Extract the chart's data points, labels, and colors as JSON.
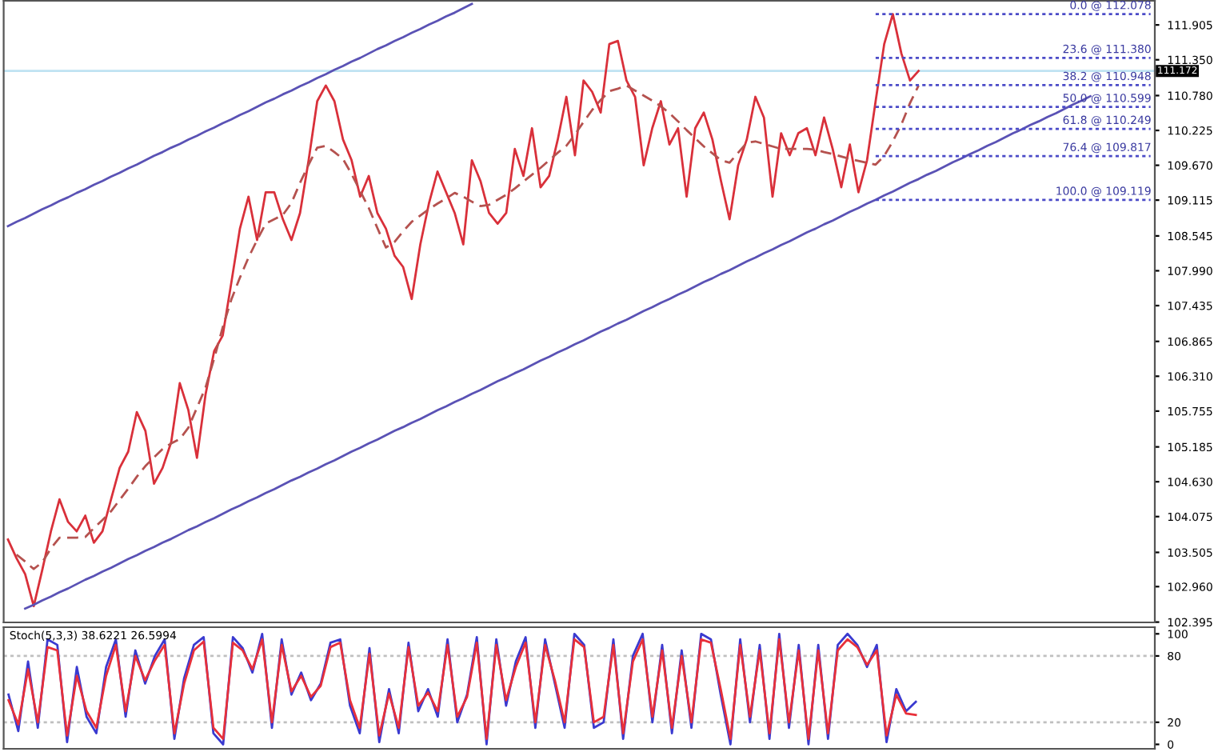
{
  "chart_data": [
    {
      "type": "line",
      "tick_labels": "y",
      "ylim": [
        102.39,
        112.29
      ],
      "categories": [
        null,
        null,
        null,
        null,
        null,
        null,
        null,
        null,
        null,
        null,
        null,
        null,
        null,
        null,
        null,
        null,
        null,
        null,
        null,
        null,
        null,
        null,
        null,
        null,
        null,
        null,
        null,
        null,
        null,
        null,
        null,
        null,
        null,
        null,
        null,
        null,
        null,
        null,
        null,
        null,
        null,
        null,
        null,
        null,
        null,
        null,
        null,
        null,
        null,
        null,
        null,
        null,
        null,
        null,
        null,
        null,
        null,
        null,
        null,
        null,
        null,
        null,
        null,
        null,
        null,
        null,
        null,
        null,
        null,
        null,
        null,
        null,
        null,
        null,
        null,
        null,
        null,
        null,
        null,
        null,
        null,
        null,
        null,
        null,
        null,
        null,
        null,
        null,
        null,
        null,
        null,
        null,
        null,
        null,
        null,
        null,
        null,
        null,
        null,
        null,
        null,
        null,
        null,
        null,
        null,
        null,
        null,
        null,
        null,
        null,
        null,
        null,
        null,
        null,
        null,
        null,
        null,
        null,
        null,
        null,
        null,
        null,
        null,
        null,
        null,
        null,
        null,
        null,
        null,
        null,
        null,
        null,
        null,
        null
      ],
      "yticks": [
        102.395,
        {
          "value": 102.96,
          "label": "102.960"
        },
        103.505,
        104.075,
        {
          "value": 104.63,
          "label": "104.630"
        },
        105.185,
        105.755,
        {
          "value": 106.31,
          "label": "106.310"
        },
        106.865,
        107.435,
        {
          "value": 107.99,
          "label": "107.990"
        },
        108.545,
        109.115,
        {
          "value": 109.67,
          "label": "109.670"
        },
        110.225,
        {
          "value": 110.78,
          "label": "110.780"
        },
        {
          "value": 111.35,
          "label": "111.350"
        },
        111.905
      ],
      "series": [
        {
          "color": "#d9303a",
          "values": [
            103.71,
            103.41,
            103.16,
            102.65,
            103.23,
            103.84,
            104.35,
            103.99,
            103.84,
            104.09,
            103.66,
            103.84,
            104.35,
            104.85,
            105.11,
            105.74,
            105.44,
            104.6,
            104.85,
            105.26,
            106.2,
            105.77,
            105.01,
            106.02,
            106.71,
            106.96,
            107.8,
            108.66,
            109.17,
            108.48,
            109.24,
            109.24,
            108.81,
            108.48,
            108.91,
            109.75,
            110.69,
            110.94,
            110.69,
            110.08,
            109.75,
            109.17,
            109.5,
            108.91,
            108.66,
            108.23,
            108.05,
            107.54,
            108.41,
            109.06,
            109.57,
            109.24,
            108.91,
            108.41,
            109.75,
            109.42,
            108.91,
            108.74,
            108.91,
            109.93,
            109.5,
            110.26,
            109.32,
            109.5,
            110.08,
            110.76,
            109.83,
            111.02,
            110.84,
            110.51,
            111.6,
            111.65,
            111.02,
            110.76,
            109.67,
            110.26,
            110.69,
            110.0,
            110.26,
            109.17,
            110.26,
            110.51,
            110.08,
            109.42,
            108.81,
            109.67,
            110.08,
            110.76,
            110.43,
            109.17,
            110.18,
            109.83,
            110.18,
            110.26,
            109.83,
            110.43,
            109.93,
            109.32,
            110.0,
            109.24,
            109.75,
            110.69,
            111.6,
            112.078,
            111.45,
            111.02,
            111.172,
            null,
            null,
            null,
            null,
            null,
            null,
            null,
            null,
            null,
            null,
            null,
            null,
            null,
            null,
            null,
            null,
            null,
            null,
            null,
            null,
            null,
            null,
            null,
            null,
            null,
            null,
            null
          ]
        },
        {
          "color": "#b5524f",
          "line_style": "dashed",
          "values": [
            null,
            103.47,
            103.36,
            103.24,
            103.35,
            103.57,
            103.74,
            103.74,
            103.74,
            103.75,
            103.89,
            104.02,
            104.16,
            104.34,
            104.52,
            104.71,
            104.88,
            105.02,
            105.15,
            105.24,
            105.31,
            105.49,
            105.81,
            106.13,
            106.59,
            107.09,
            107.53,
            107.88,
            108.2,
            108.48,
            108.74,
            108.81,
            108.88,
            109.07,
            109.39,
            109.68,
            109.95,
            109.98,
            109.88,
            109.77,
            109.53,
            109.26,
            108.99,
            108.67,
            108.36,
            108.45,
            108.62,
            108.77,
            108.87,
            108.97,
            109.06,
            109.14,
            109.23,
            109.17,
            109.09,
            109.02,
            109.04,
            109.12,
            109.2,
            109.3,
            109.41,
            109.52,
            109.63,
            109.75,
            109.87,
            109.98,
            110.16,
            110.36,
            110.55,
            110.71,
            110.85,
            110.89,
            110.94,
            110.86,
            110.78,
            110.7,
            110.61,
            110.5,
            110.37,
            110.23,
            110.1,
            109.97,
            109.86,
            109.75,
            109.71,
            109.87,
            110.03,
            110.05,
            110.01,
            109.97,
            109.93,
            109.93,
            109.93,
            109.93,
            109.92,
            109.88,
            109.85,
            109.81,
            109.77,
            109.74,
            109.71,
            109.68,
            109.82,
            110.05,
            110.32,
            110.66,
            110.94,
            null,
            null,
            null,
            null,
            null,
            null,
            null,
            null,
            null,
            null,
            null,
            null,
            null,
            null,
            null,
            null,
            null,
            null,
            null,
            null,
            null,
            null,
            null,
            null,
            null,
            null,
            null
          ]
        },
        {
          "color": "#5a52b5",
          "values": [
            108.7,
            108.77,
            108.83,
            108.9,
            108.97,
            109.03,
            109.1,
            109.16,
            109.23,
            109.29,
            109.36,
            109.42,
            109.49,
            109.55,
            109.62,
            109.68,
            109.75,
            109.82,
            109.88,
            109.95,
            110.01,
            110.08,
            110.14,
            110.21,
            110.27,
            110.34,
            110.4,
            110.47,
            110.53,
            110.6,
            110.67,
            110.73,
            110.8,
            110.86,
            110.93,
            110.99,
            111.06,
            111.12,
            111.19,
            111.25,
            111.32,
            111.38,
            111.45,
            111.52,
            111.58,
            111.65,
            111.71,
            111.78,
            111.84,
            111.91,
            111.97,
            112.04,
            112.1,
            112.17,
            112.24,
            null,
            null,
            null,
            null,
            null,
            null,
            null,
            null,
            null,
            null,
            null,
            null,
            null,
            null,
            null,
            null,
            null,
            null,
            null,
            null,
            null,
            null,
            null,
            null,
            null,
            null,
            null,
            null,
            null,
            null,
            null,
            null,
            null,
            null,
            null,
            null,
            null,
            null,
            null,
            null,
            null,
            null,
            null,
            null,
            null,
            null,
            null,
            null,
            null,
            null,
            null,
            null,
            null,
            null,
            null,
            null,
            null,
            null,
            null,
            null,
            null,
            null,
            null,
            null,
            null,
            null,
            null,
            null,
            null,
            null,
            null,
            null,
            null,
            null,
            null,
            null,
            null,
            null,
            null
          ]
        },
        {
          "color": "#5a52b5",
          "values": [
            null,
            null,
            102.61,
            102.67,
            102.74,
            102.8,
            102.87,
            102.93,
            103.0,
            103.07,
            103.13,
            103.2,
            103.26,
            103.33,
            103.4,
            103.46,
            103.53,
            103.59,
            103.66,
            103.72,
            103.79,
            103.86,
            103.92,
            103.99,
            104.05,
            104.12,
            104.19,
            104.25,
            104.32,
            104.38,
            104.45,
            104.51,
            104.58,
            104.65,
            104.71,
            104.78,
            104.84,
            104.91,
            104.97,
            105.04,
            105.11,
            105.17,
            105.24,
            105.3,
            105.37,
            105.44,
            105.5,
            105.57,
            105.63,
            105.7,
            105.77,
            105.83,
            105.9,
            105.96,
            106.03,
            106.09,
            106.16,
            106.23,
            106.29,
            106.36,
            106.42,
            106.49,
            106.56,
            106.62,
            106.69,
            106.75,
            106.82,
            106.88,
            106.95,
            107.02,
            107.08,
            107.15,
            107.21,
            107.28,
            107.35,
            107.41,
            107.48,
            107.54,
            107.61,
            107.67,
            107.74,
            107.81,
            107.87,
            107.94,
            108.0,
            108.07,
            108.14,
            108.2,
            108.27,
            108.33,
            108.4,
            108.46,
            108.53,
            108.6,
            108.66,
            108.73,
            108.79,
            108.86,
            108.93,
            108.99,
            109.06,
            109.12,
            109.19,
            109.25,
            109.32,
            109.39,
            109.45,
            109.52,
            109.58,
            109.65,
            109.72,
            109.78,
            109.85,
            109.91,
            109.98,
            110.04,
            110.11,
            110.18,
            110.24,
            110.31,
            110.37,
            110.44,
            110.5,
            110.57,
            110.64,
            110.7,
            110.77,
            null,
            null,
            null,
            null,
            null,
            null,
            null
          ]
        },
        {
          "color": "#4b4bc8",
          "line_style": "dotted",
          "values": [
            null,
            null,
            null,
            null,
            null,
            null,
            null,
            null,
            null,
            null,
            null,
            null,
            null,
            null,
            null,
            null,
            null,
            null,
            null,
            null,
            null,
            null,
            null,
            null,
            null,
            null,
            null,
            null,
            null,
            null,
            null,
            null,
            null,
            null,
            null,
            null,
            null,
            null,
            null,
            null,
            null,
            null,
            null,
            null,
            null,
            null,
            null,
            null,
            null,
            null,
            null,
            null,
            null,
            null,
            null,
            null,
            null,
            null,
            null,
            null,
            null,
            null,
            null,
            null,
            null,
            null,
            null,
            null,
            null,
            null,
            null,
            null,
            null,
            null,
            null,
            null,
            null,
            null,
            null,
            null,
            null,
            null,
            null,
            null,
            null,
            null,
            null,
            null,
            null,
            null,
            null,
            null,
            null,
            null,
            null,
            null,
            null,
            null,
            null,
            null,
            null,
            112.078,
            112.078,
            112.078,
            112.078,
            112.078,
            112.078,
            112.078,
            112.078,
            112.078,
            112.078,
            112.078,
            112.078,
            112.078,
            112.078,
            112.078,
            112.078,
            112.078,
            112.078,
            112.078,
            112.078,
            112.078,
            112.078,
            112.078,
            112.078,
            112.078,
            112.078,
            112.078,
            112.078,
            112.078,
            112.078,
            112.078,
            112.078,
            112.078
          ]
        },
        {
          "color": "#4b4bc8",
          "line_style": "dotted",
          "values": [
            null,
            null,
            null,
            null,
            null,
            null,
            null,
            null,
            null,
            null,
            null,
            null,
            null,
            null,
            null,
            null,
            null,
            null,
            null,
            null,
            null,
            null,
            null,
            null,
            null,
            null,
            null,
            null,
            null,
            null,
            null,
            null,
            null,
            null,
            null,
            null,
            null,
            null,
            null,
            null,
            null,
            null,
            null,
            null,
            null,
            null,
            null,
            null,
            null,
            null,
            null,
            null,
            null,
            null,
            null,
            null,
            null,
            null,
            null,
            null,
            null,
            null,
            null,
            null,
            null,
            null,
            null,
            null,
            null,
            null,
            null,
            null,
            null,
            null,
            null,
            null,
            null,
            null,
            null,
            null,
            null,
            null,
            null,
            null,
            null,
            null,
            null,
            null,
            null,
            null,
            null,
            null,
            null,
            null,
            null,
            null,
            null,
            null,
            null,
            null,
            null,
            111.38,
            111.38,
            111.38,
            111.38,
            111.38,
            111.38,
            111.38,
            111.38,
            111.38,
            111.38,
            111.38,
            111.38,
            111.38,
            111.38,
            111.38,
            111.38,
            111.38,
            111.38,
            111.38,
            111.38,
            111.38,
            111.38,
            111.38,
            111.38,
            111.38,
            111.38,
            111.38,
            111.38,
            111.38,
            111.38,
            111.38,
            111.38,
            111.38
          ]
        },
        {
          "color": "#4b4bc8",
          "line_style": "dotted",
          "values": [
            null,
            null,
            null,
            null,
            null,
            null,
            null,
            null,
            null,
            null,
            null,
            null,
            null,
            null,
            null,
            null,
            null,
            null,
            null,
            null,
            null,
            null,
            null,
            null,
            null,
            null,
            null,
            null,
            null,
            null,
            null,
            null,
            null,
            null,
            null,
            null,
            null,
            null,
            null,
            null,
            null,
            null,
            null,
            null,
            null,
            null,
            null,
            null,
            null,
            null,
            null,
            null,
            null,
            null,
            null,
            null,
            null,
            null,
            null,
            null,
            null,
            null,
            null,
            null,
            null,
            null,
            null,
            null,
            null,
            null,
            null,
            null,
            null,
            null,
            null,
            null,
            null,
            null,
            null,
            null,
            null,
            null,
            null,
            null,
            null,
            null,
            null,
            null,
            null,
            null,
            null,
            null,
            null,
            null,
            null,
            null,
            null,
            null,
            null,
            null,
            null,
            110.948,
            110.948,
            110.948,
            110.948,
            110.948,
            110.948,
            110.948,
            110.948,
            110.948,
            110.948,
            110.948,
            110.948,
            110.948,
            110.948,
            110.948,
            110.948,
            110.948,
            110.948,
            110.948,
            110.948,
            110.948,
            110.948,
            110.948,
            110.948,
            110.948,
            110.948,
            110.948,
            110.948,
            110.948,
            110.948,
            110.948,
            110.948,
            110.948
          ]
        },
        {
          "color": "#4b4bc8",
          "line_style": "dotted",
          "values": [
            null,
            null,
            null,
            null,
            null,
            null,
            null,
            null,
            null,
            null,
            null,
            null,
            null,
            null,
            null,
            null,
            null,
            null,
            null,
            null,
            null,
            null,
            null,
            null,
            null,
            null,
            null,
            null,
            null,
            null,
            null,
            null,
            null,
            null,
            null,
            null,
            null,
            null,
            null,
            null,
            null,
            null,
            null,
            null,
            null,
            null,
            null,
            null,
            null,
            null,
            null,
            null,
            null,
            null,
            null,
            null,
            null,
            null,
            null,
            null,
            null,
            null,
            null,
            null,
            null,
            null,
            null,
            null,
            null,
            null,
            null,
            null,
            null,
            null,
            null,
            null,
            null,
            null,
            null,
            null,
            null,
            null,
            null,
            null,
            null,
            null,
            null,
            null,
            null,
            null,
            null,
            null,
            null,
            null,
            null,
            null,
            null,
            null,
            null,
            null,
            null,
            110.599,
            110.599,
            110.599,
            110.599,
            110.599,
            110.599,
            110.599,
            110.599,
            110.599,
            110.599,
            110.599,
            110.599,
            110.599,
            110.599,
            110.599,
            110.599,
            110.599,
            110.599,
            110.599,
            110.599,
            110.599,
            110.599,
            110.599,
            110.599,
            110.599,
            110.599,
            110.599,
            110.599,
            110.599,
            110.599,
            110.599,
            110.599,
            110.599
          ]
        },
        {
          "color": "#4b4bc8",
          "line_style": "dotted",
          "values": [
            null,
            null,
            null,
            null,
            null,
            null,
            null,
            null,
            null,
            null,
            null,
            null,
            null,
            null,
            null,
            null,
            null,
            null,
            null,
            null,
            null,
            null,
            null,
            null,
            null,
            null,
            null,
            null,
            null,
            null,
            null,
            null,
            null,
            null,
            null,
            null,
            null,
            null,
            null,
            null,
            null,
            null,
            null,
            null,
            null,
            null,
            null,
            null,
            null,
            null,
            null,
            null,
            null,
            null,
            null,
            null,
            null,
            null,
            null,
            null,
            null,
            null,
            null,
            null,
            null,
            null,
            null,
            null,
            null,
            null,
            null,
            null,
            null,
            null,
            null,
            null,
            null,
            null,
            null,
            null,
            null,
            null,
            null,
            null,
            null,
            null,
            null,
            null,
            null,
            null,
            null,
            null,
            null,
            null,
            null,
            null,
            null,
            null,
            null,
            null,
            null,
            110.249,
            110.249,
            110.249,
            110.249,
            110.249,
            110.249,
            110.249,
            110.249,
            110.249,
            110.249,
            110.249,
            110.249,
            110.249,
            110.249,
            110.249,
            110.249,
            110.249,
            110.249,
            110.249,
            110.249,
            110.249,
            110.249,
            110.249,
            110.249,
            110.249,
            110.249,
            110.249,
            110.249,
            110.249,
            110.249,
            110.249,
            110.249,
            110.249
          ]
        },
        {
          "color": "#4b4bc8",
          "line_style": "dotted",
          "values": [
            null,
            null,
            null,
            null,
            null,
            null,
            null,
            null,
            null,
            null,
            null,
            null,
            null,
            null,
            null,
            null,
            null,
            null,
            null,
            null,
            null,
            null,
            null,
            null,
            null,
            null,
            null,
            null,
            null,
            null,
            null,
            null,
            null,
            null,
            null,
            null,
            null,
            null,
            null,
            null,
            null,
            null,
            null,
            null,
            null,
            null,
            null,
            null,
            null,
            null,
            null,
            null,
            null,
            null,
            null,
            null,
            null,
            null,
            null,
            null,
            null,
            null,
            null,
            null,
            null,
            null,
            null,
            null,
            null,
            null,
            null,
            null,
            null,
            null,
            null,
            null,
            null,
            null,
            null,
            null,
            null,
            null,
            null,
            null,
            null,
            null,
            null,
            null,
            null,
            null,
            null,
            null,
            null,
            null,
            null,
            null,
            null,
            null,
            null,
            null,
            null,
            109.817,
            109.817,
            109.817,
            109.817,
            109.817,
            109.817,
            109.817,
            109.817,
            109.817,
            109.817,
            109.817,
            109.817,
            109.817,
            109.817,
            109.817,
            109.817,
            109.817,
            109.817,
            109.817,
            109.817,
            109.817,
            109.817,
            109.817,
            109.817,
            109.817,
            109.817,
            109.817,
            109.817,
            109.817,
            109.817,
            109.817,
            109.817,
            109.817
          ]
        },
        {
          "color": "#4b4bc8",
          "line_style": "dotted",
          "values": [
            null,
            null,
            null,
            null,
            null,
            null,
            null,
            null,
            null,
            null,
            null,
            null,
            null,
            null,
            null,
            null,
            null,
            null,
            null,
            null,
            null,
            null,
            null,
            null,
            null,
            null,
            null,
            null,
            null,
            null,
            null,
            null,
            null,
            null,
            null,
            null,
            null,
            null,
            null,
            null,
            null,
            null,
            null,
            null,
            null,
            null,
            null,
            null,
            null,
            null,
            null,
            null,
            null,
            null,
            null,
            null,
            null,
            null,
            null,
            null,
            null,
            null,
            null,
            null,
            null,
            null,
            null,
            null,
            null,
            null,
            null,
            null,
            null,
            null,
            null,
            null,
            null,
            null,
            null,
            null,
            null,
            null,
            null,
            null,
            null,
            null,
            null,
            null,
            null,
            null,
            null,
            null,
            null,
            null,
            null,
            null,
            null,
            null,
            null,
            null,
            null,
            109.119,
            109.119,
            109.119,
            109.119,
            109.119,
            109.119,
            109.119,
            109.119,
            109.119,
            109.119,
            109.119,
            109.119,
            109.119,
            109.119,
            109.119,
            109.119,
            109.119,
            109.119,
            109.119,
            109.119,
            109.119,
            109.119,
            109.119,
            109.119,
            109.119,
            109.119,
            109.119,
            109.119,
            109.119,
            109.119,
            109.119,
            109.119,
            109.119
          ]
        }
      ],
      "ref_lines": [
        {
          "axis": "y",
          "value": 111.172,
          "label": "111.172",
          "color": "#bfe3f2"
        }
      ],
      "annotations": [
        {
          "text": "0.0 @ 112.078",
          "y": 112.078
        },
        {
          "text": "23.6 @ 111.380",
          "y": 111.38
        },
        {
          "text": "38.2 @ 110.948",
          "y": 110.948
        },
        {
          "text": "50.0 @ 110.599",
          "y": 110.599
        },
        {
          "text": "61.8 @ 110.249",
          "y": 110.249
        },
        {
          "text": "76.4 @ 109.817",
          "y": 109.817
        },
        {
          "text": "100.0 @ 109.119",
          "y": 109.119
        }
      ]
    },
    {
      "type": "line",
      "tick_labels": "y",
      "ylim": [
        -4,
        106
      ],
      "yticks": [
        0,
        20,
        80,
        100
      ],
      "title": "Stoch(5,3,3) 38.6221 26.5994",
      "categories": [
        null,
        null,
        null,
        null,
        null,
        null,
        null,
        null,
        null,
        null,
        null,
        null,
        null,
        null,
        null,
        null,
        null,
        null,
        null,
        null,
        null,
        null,
        null,
        null,
        null,
        null,
        null,
        null,
        null,
        null,
        null,
        null,
        null,
        null,
        null,
        null,
        null,
        null,
        null,
        null,
        null,
        null,
        null,
        null,
        null,
        null,
        null,
        null,
        null,
        null,
        null,
        null,
        null,
        null,
        null,
        null,
        null,
        null,
        null,
        null,
        null,
        null,
        null,
        null,
        null,
        null,
        null,
        null,
        null,
        null,
        null,
        null,
        null,
        null,
        null,
        null,
        null,
        null,
        null,
        null,
        null,
        null,
        null,
        null,
        null,
        null,
        null,
        null,
        null,
        null,
        null,
        null,
        null,
        null,
        null,
        null,
        null,
        null,
        null,
        null,
        null,
        null,
        null,
        null,
        null,
        null,
        null,
        null,
        null,
        null,
        null,
        null,
        null,
        null,
        null,
        null,
        null,
        null
      ],
      "series": [
        {
          "color": "#3a3ad0",
          "values": [
            45,
            12,
            75,
            15,
            95,
            90,
            2,
            70,
            25,
            10,
            70,
            95,
            25,
            85,
            55,
            80,
            95,
            5,
            60,
            90,
            97,
            10,
            0,
            97,
            87,
            65,
            100,
            15,
            95,
            45,
            65,
            40,
            55,
            92,
            95,
            35,
            10,
            87,
            2,
            50,
            10,
            92,
            30,
            50,
            25,
            95,
            20,
            45,
            97,
            0,
            95,
            35,
            75,
            97,
            15,
            95,
            55,
            15,
            100,
            90,
            15,
            20,
            95,
            5,
            80,
            100,
            20,
            90,
            10,
            85,
            15,
            100,
            95,
            45,
            0,
            95,
            20,
            90,
            5,
            100,
            15,
            90,
            0,
            90,
            5,
            90,
            100,
            90,
            70,
            90,
            2,
            50,
            30,
            38.6,
            null,
            null,
            null,
            null,
            null,
            null,
            null,
            null,
            null,
            null,
            null,
            null,
            null,
            null,
            null,
            null,
            null,
            null,
            null,
            null,
            null,
            null,
            null,
            null
          ]
        },
        {
          "color": "#e8303a",
          "values": [
            40,
            18,
            68,
            20,
            88,
            85,
            8,
            62,
            30,
            15,
            62,
            90,
            30,
            80,
            58,
            76,
            90,
            10,
            55,
            85,
            93,
            15,
            5,
            92,
            85,
            68,
            95,
            20,
            90,
            48,
            62,
            43,
            53,
            88,
            92,
            40,
            15,
            82,
            8,
            46,
            15,
            88,
            35,
            47,
            30,
            90,
            25,
            43,
            92,
            5,
            90,
            40,
            70,
            92,
            20,
            90,
            58,
            20,
            95,
            88,
            20,
            25,
            90,
            10,
            75,
            95,
            25,
            85,
            15,
            80,
            20,
            95,
            92,
            50,
            5,
            90,
            25,
            85,
            10,
            95,
            20,
            85,
            5,
            85,
            10,
            85,
            95,
            88,
            72,
            85,
            8,
            45,
            28,
            26.6,
            null,
            null,
            null,
            null,
            null,
            null,
            null,
            null,
            null,
            null,
            null,
            null,
            null,
            null,
            null,
            null,
            null,
            null,
            null,
            null,
            null,
            null,
            null,
            null
          ]
        }
      ],
      "ref_lines": [
        {
          "axis": "y",
          "value": 20,
          "color": "#c0c0c0",
          "line_style": "dotted"
        },
        {
          "axis": "y",
          "value": 80,
          "color": "#c0c0c0",
          "line_style": "dotted"
        }
      ]
    }
  ]
}
